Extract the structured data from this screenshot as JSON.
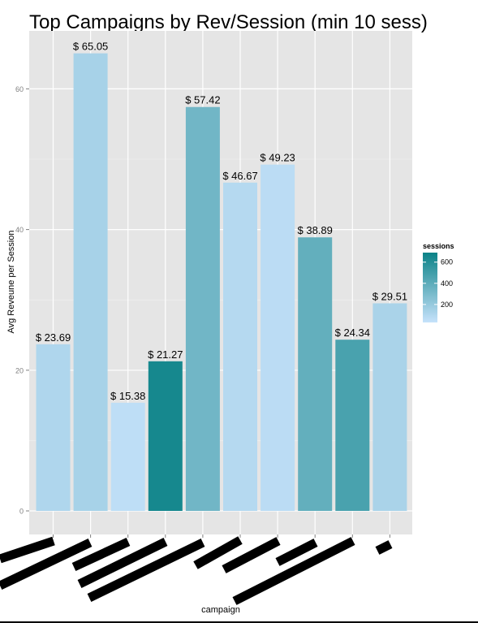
{
  "chart_data": {
    "type": "bar",
    "title": "Top Campaigns by Rev/Session (min 10 sess)",
    "xlabel": "campaign",
    "ylabel": "Avg Reveune per Session",
    "ylim": [
      0,
      68
    ],
    "yticks": [
      0,
      20,
      40,
      60
    ],
    "grid": true,
    "categories": [
      "",
      "",
      "",
      "",
      "",
      "",
      "",
      "",
      "",
      ""
    ],
    "values": [
      23.69,
      65.05,
      15.38,
      21.27,
      57.42,
      46.67,
      49.23,
      38.89,
      24.34,
      29.51
    ],
    "data_labels": [
      "$ 23.69",
      "$ 65.05",
      "$ 15.38",
      "$ 21.27",
      "$ 57.42",
      "$ 46.67",
      "$ 49.23",
      "$ 38.89",
      "$ 24.34",
      "$ 29.51"
    ],
    "sessions": [
      110,
      140,
      60,
      650,
      330,
      90,
      70,
      380,
      470,
      130
    ],
    "legend": {
      "title": "sessions",
      "position": "right",
      "ticks": [
        200,
        400,
        600
      ],
      "range": [
        30,
        690
      ],
      "low_color": "#c6e2fb",
      "high_color": "#0b8287"
    }
  }
}
